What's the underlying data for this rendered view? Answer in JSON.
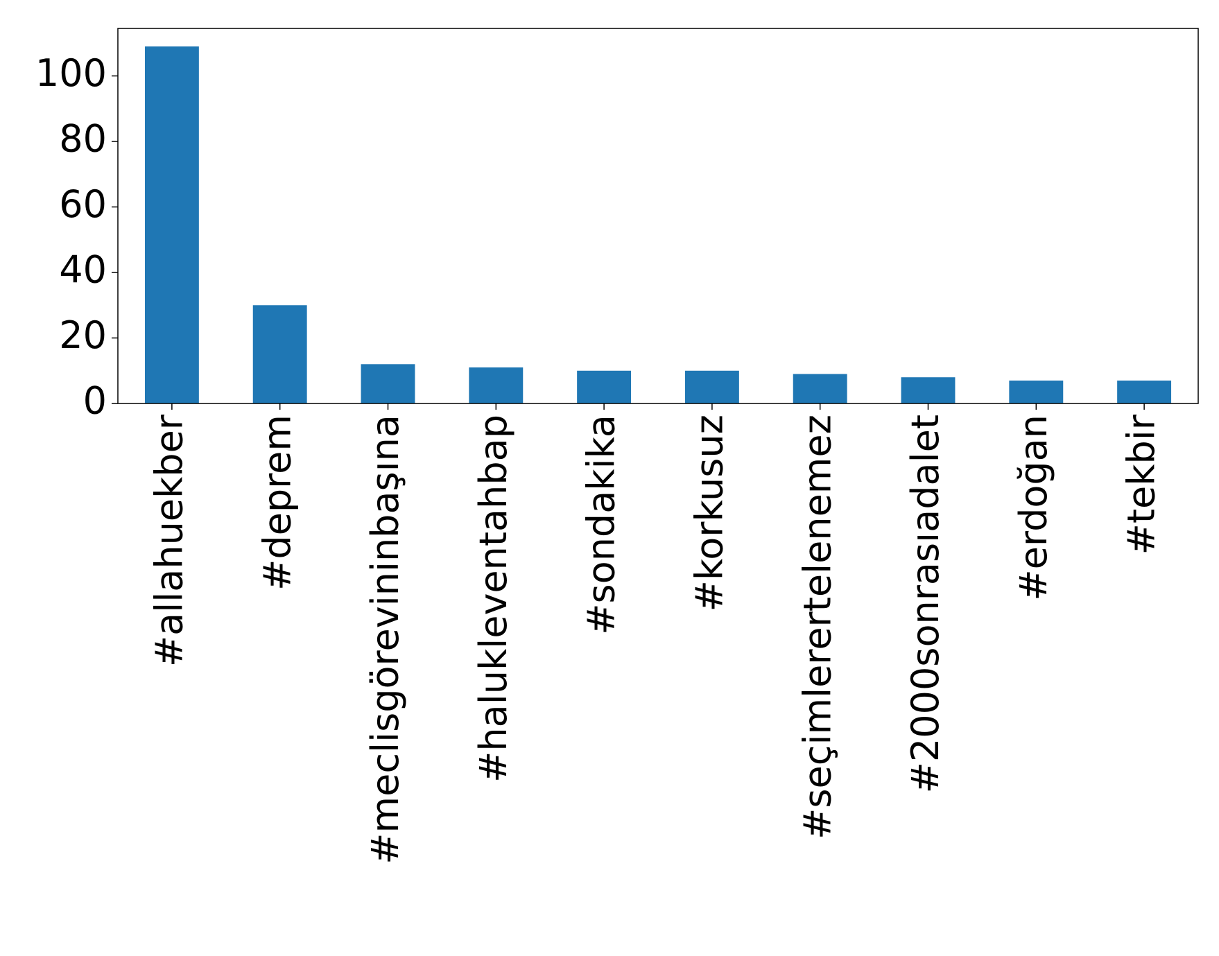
{
  "chart_data": {
    "type": "bar",
    "categories": [
      "#allahuekber",
      "#deprem",
      "#meclisgörevininbaşına",
      "#halukleventahbap",
      "#sondakika",
      "#korkusuz",
      "#seçimlerertelenemez",
      "#2000sonrasıadalet",
      "#erdoğan",
      "#tekbir"
    ],
    "values": [
      109,
      30,
      12,
      11,
      10,
      10,
      9,
      8,
      7,
      7
    ],
    "color": "#1f77b4",
    "ylim": [
      0,
      114.5
    ],
    "yticks": [
      0,
      20,
      40,
      60,
      80,
      100
    ],
    "grid": false
  }
}
